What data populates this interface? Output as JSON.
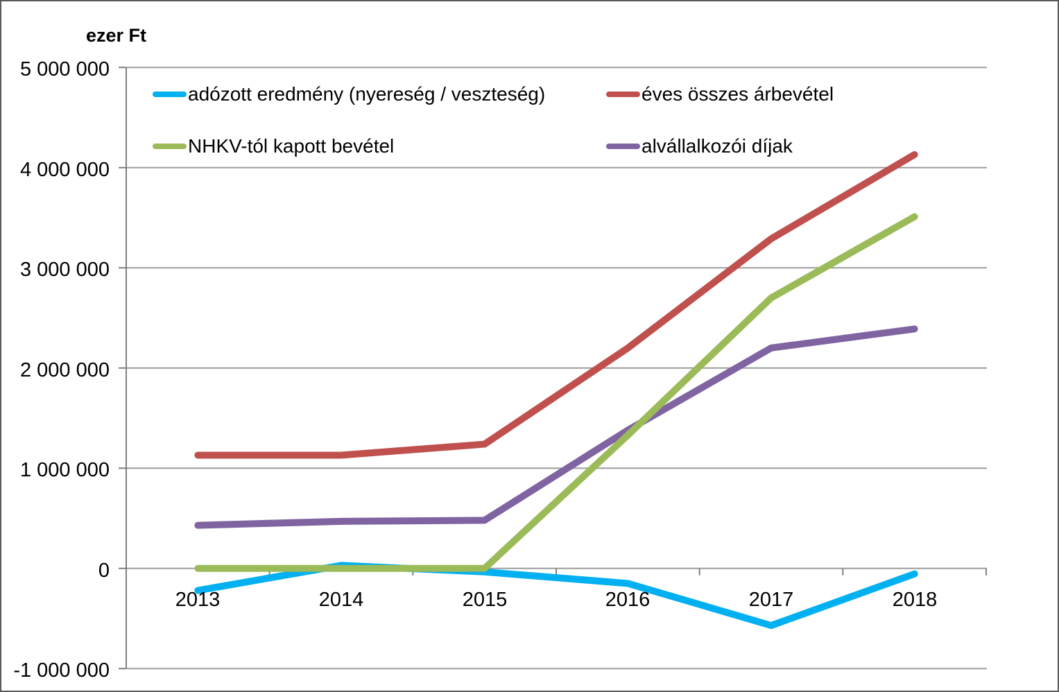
{
  "chart_data": {
    "type": "line",
    "title": "ezer Ft",
    "categories": [
      "2013",
      "2014",
      "2015",
      "2016",
      "2017",
      "2018"
    ],
    "series": [
      {
        "name": "adózott eredmény (nyereség / veszteség)",
        "color": "#00B0F0",
        "values": [
          -220000,
          30000,
          -35000,
          -150000,
          -570000,
          -55000
        ]
      },
      {
        "name": "éves összes árbevétel",
        "color": "#C0504D",
        "values": [
          1130000,
          1130000,
          1240000,
          2200000,
          3290000,
          4130000
        ]
      },
      {
        "name": "NHKV-tól kapott bevétel",
        "color": "#9BBB59",
        "values": [
          0,
          0,
          0,
          1330000,
          2700000,
          3510000
        ]
      },
      {
        "name": "alvállalkozói díjak",
        "color": "#8064A2",
        "values": [
          430000,
          470000,
          480000,
          1380000,
          2200000,
          2390000
        ]
      }
    ],
    "ylabel": "ezer Ft",
    "ylim": [
      -1000000,
      5000000
    ],
    "ytick_step": 1000000,
    "ytick_labels": [
      "5 000 000",
      "4 000 000",
      "3 000 000",
      "2 000 000",
      "1 000 000",
      "0",
      "-1 000 000"
    ],
    "grid": "horizontal",
    "legend_position": "inside-top-left"
  }
}
